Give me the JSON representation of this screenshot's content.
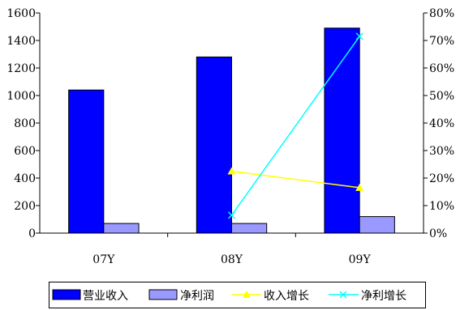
{
  "chart_data": {
    "type": "bar",
    "categories": [
      "07Y",
      "08Y",
      "09Y"
    ],
    "series": [
      {
        "name": "营业收入",
        "type": "bar",
        "axis": "left",
        "color": "#0000ff",
        "values": [
          1040,
          1280,
          1490
        ]
      },
      {
        "name": "净利润",
        "type": "bar",
        "axis": "left",
        "color": "#9999ff",
        "values": [
          70,
          70,
          120
        ]
      },
      {
        "name": "收入增长",
        "type": "line",
        "axis": "right",
        "marker": "triangle",
        "color": "#ffff00",
        "values": [
          null,
          22.5,
          16.5
        ]
      },
      {
        "name": "净利增长",
        "type": "line",
        "axis": "right",
        "marker": "x",
        "color": "#00ffff",
        "values": [
          null,
          6.5,
          71.5
        ]
      }
    ],
    "y_left": {
      "min": 0,
      "max": 1600,
      "ticks": [
        "0",
        "200",
        "400",
        "600",
        "800",
        "1000",
        "1200",
        "1400",
        "1600"
      ]
    },
    "y_right": {
      "min": 0,
      "max": 80,
      "ticks": [
        "0%",
        "10%",
        "20%",
        "30%",
        "40%",
        "50%",
        "60%",
        "70%",
        "80%"
      ]
    },
    "grid": false,
    "legend_position": "bottom"
  }
}
